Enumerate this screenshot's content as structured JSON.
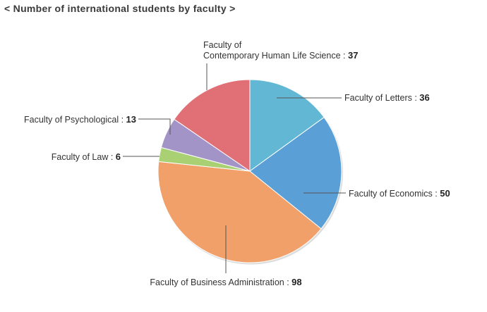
{
  "chart_data": {
    "type": "pie",
    "title": "< Number of international students by faculty >",
    "slices": [
      {
        "label": "Faculty of Letters",
        "label_lines": [
          "Faculty of Letters"
        ],
        "separator": " : ",
        "value": 36,
        "color": "#62b8d4"
      },
      {
        "label": "Faculty of Economics",
        "label_lines": [
          "Faculty of Economics"
        ],
        "separator": " : ",
        "value": 50,
        "color": "#5a9fd6"
      },
      {
        "label": "Faculty of Business Administration",
        "label_lines": [
          "Faculty of Business Administration"
        ],
        "separator": " : ",
        "value": 98,
        "color": "#f2a069"
      },
      {
        "label": "Faculty of Law",
        "label_lines": [
          "Faculty of Law"
        ],
        "separator": "  : ",
        "value": 6,
        "color": "#a9d174"
      },
      {
        "label": "Faculty of Psychological",
        "label_lines": [
          "Faculty of Psychological"
        ],
        "separator": " : ",
        "value": 13,
        "color": "#a394c8"
      },
      {
        "label": "Faculty of Contemporary Human Life Science",
        "label_lines": [
          "Faculty of",
          "Contemporary Human Life Science"
        ],
        "separator": " : ",
        "value": 37,
        "color": "#e07075"
      }
    ],
    "start": "12 o'clock",
    "direction": "clockwise",
    "leader_line_color": "#555555",
    "slice_border_color": "#ffffff"
  }
}
